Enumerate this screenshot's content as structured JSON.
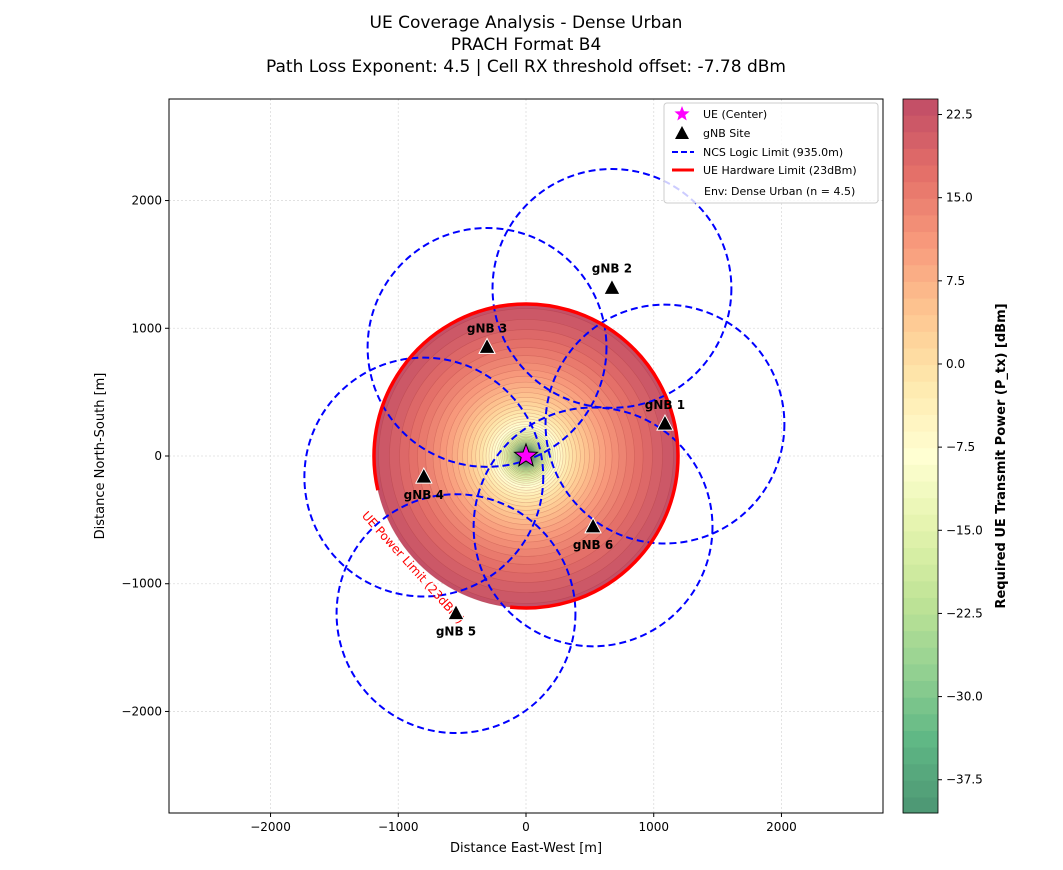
{
  "chart_data": {
    "type": "scatter",
    "title_lines": [
      "UE Coverage Analysis - Dense Urban",
      "PRACH Format B4",
      "Path Loss Exponent: 4.5 | Cell RX threshold offset: -7.78  dBm"
    ],
    "xlabel": "Distance East-West [m]",
    "ylabel": "Distance North-South [m]",
    "xlim": [
      -2795,
      2795
    ],
    "ylim": [
      -2795,
      2795
    ],
    "xticks": [
      -2000,
      -1000,
      0,
      1000,
      2000
    ],
    "yticks": [
      -2000,
      -1000,
      0,
      1000,
      2000
    ],
    "xtick_labels": [
      "−2000",
      "−1000",
      "0",
      "1000",
      "2000"
    ],
    "ytick_labels": [
      "−2000",
      "−1000",
      "0",
      "1000",
      "2000"
    ],
    "grid": true,
    "ue": {
      "x": 0,
      "y": 0,
      "label": "UE (Center)"
    },
    "gnbs": [
      {
        "label": "gNB 1",
        "x": 1088,
        "y": 250
      },
      {
        "label": "gNB 2",
        "x": 673,
        "y": 1312
      },
      {
        "label": "gNB 3",
        "x": -305,
        "y": 850
      },
      {
        "label": "gNB 4",
        "x": -800,
        "y": -165
      },
      {
        "label": "gNB 5",
        "x": -548,
        "y": -1234
      },
      {
        "label": "gNB 6",
        "x": 525,
        "y": -555
      }
    ],
    "ncs_radius_m": 935,
    "ue_limit_radius_m": 1190,
    "ue_limit_dbm": 23,
    "path_loss_exponent": 4.5,
    "limit_annotation": "UE Power Limit (23dBm)",
    "legend": {
      "placement": "top-right",
      "entries": [
        "UE (Center)",
        "gNB Site",
        "NCS Logic Limit (935.0m)",
        "UE Hardware Limit (23dBm)",
        "Env: Dense Urban (n = 4.5)"
      ]
    },
    "colorbar": {
      "label": "Required UE Transmit Power (P_tx) [dBm]",
      "range": [
        -40.5,
        23.9
      ],
      "ticks": [
        22.5,
        15.0,
        7.5,
        0.0,
        -7.5,
        -15.0,
        -22.5,
        -30.0,
        -37.5
      ],
      "tick_labels": [
        "22.5",
        "15.0",
        "7.5",
        "0.0",
        "−7.5",
        "−15.0",
        "−22.5",
        "−30.0",
        "−37.5"
      ],
      "colormap": "RdYlGn_r",
      "level_step": 1.5
    },
    "colors": {
      "ncs": "#0000ff",
      "limit": "#ff0000",
      "ue": "#ff00ff",
      "gnb": "#000000"
    }
  }
}
